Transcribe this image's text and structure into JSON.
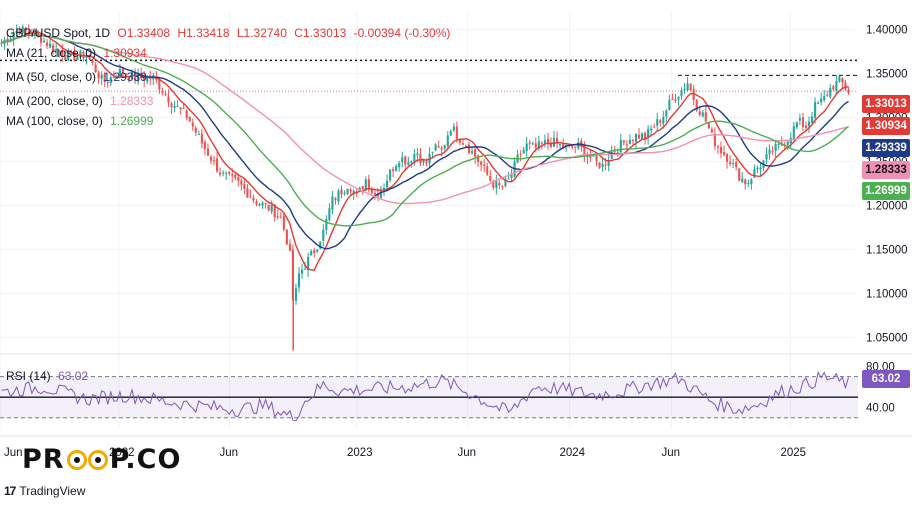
{
  "header": {
    "symbol": "GBP/USD Spot, 1D",
    "open": "O1.33408",
    "high": "H1.33418",
    "low": "L1.32740",
    "close": "C1.33013",
    "change": "-0.00394 (-0.30%)"
  },
  "indicators": [
    {
      "label": "MA (21, close, 0)",
      "value": "1.30934",
      "color": "#e53935"
    },
    {
      "label": "MA (50, close, 0)",
      "value": "1.29339",
      "color": "#1e3a8a"
    },
    {
      "label": "MA (200, close, 0)",
      "value": "1.28333",
      "color": "#f48fb1"
    },
    {
      "label": "MA (100, close, 0)",
      "value": "1.26999",
      "color": "#4caf50"
    }
  ],
  "price_labels": [
    {
      "value": "1.33013",
      "color": "#e53935"
    },
    {
      "value": "1.30934",
      "color": "#e53935"
    },
    {
      "value": "1.29339",
      "color": "#1e3a8a"
    },
    {
      "value": "1.28333",
      "color": "#f48fb1"
    },
    {
      "value": "1.26999",
      "color": "#4caf50"
    }
  ],
  "rsi": {
    "label": "RSI (14)",
    "value": "63.02",
    "color": "#7e57c2",
    "upper": 70,
    "lower": 30
  },
  "rsi_axis": [
    "80.00",
    "40.00"
  ],
  "x_axis": [
    "Jun",
    "2022",
    "Jun",
    "2023",
    "Jun",
    "2024",
    "Jun",
    "2025"
  ],
  "brand": {
    "logo_left": "PR",
    "logo_right": "P.CO",
    "platform": "TradingView",
    "platform_mark": "17"
  },
  "chart_data": {
    "type": "candlestick",
    "title": "GBP/USD Spot, 1D",
    "ylim": [
      1.03,
      1.42
    ],
    "y_ticks": [
      1.05,
      1.1,
      1.15,
      1.2,
      1.25,
      1.3,
      1.35,
      1.4
    ],
    "reference_lines": [
      1.365,
      1.348
    ],
    "x_labels": [
      "Jun",
      "2022",
      "Jun",
      "2023",
      "Jun",
      "2024",
      "Jun",
      "2025"
    ],
    "x_label_positions": [
      0.0,
      0.14,
      0.27,
      0.42,
      0.55,
      0.67,
      0.79,
      0.93
    ],
    "close_path": [
      [
        0.0,
        1.385
      ],
      [
        0.02,
        1.4
      ],
      [
        0.04,
        1.395
      ],
      [
        0.06,
        1.38
      ],
      [
        0.08,
        1.368
      ],
      [
        0.1,
        1.372
      ],
      [
        0.12,
        1.34
      ],
      [
        0.14,
        1.352
      ],
      [
        0.16,
        1.345
      ],
      [
        0.18,
        1.345
      ],
      [
        0.2,
        1.318
      ],
      [
        0.22,
        1.3
      ],
      [
        0.24,
        1.265
      ],
      [
        0.26,
        1.235
      ],
      [
        0.28,
        1.225
      ],
      [
        0.3,
        1.205
      ],
      [
        0.32,
        1.195
      ],
      [
        0.33,
        1.185
      ],
      [
        0.34,
        1.15
      ],
      [
        0.345,
        1.08
      ],
      [
        0.35,
        1.12
      ],
      [
        0.36,
        1.135
      ],
      [
        0.37,
        1.15
      ],
      [
        0.38,
        1.17
      ],
      [
        0.39,
        1.205
      ],
      [
        0.4,
        1.215
      ],
      [
        0.41,
        1.225
      ],
      [
        0.42,
        1.21
      ],
      [
        0.43,
        1.23
      ],
      [
        0.44,
        1.212
      ],
      [
        0.45,
        1.22
      ],
      [
        0.46,
        1.24
      ],
      [
        0.47,
        1.255
      ],
      [
        0.48,
        1.25
      ],
      [
        0.49,
        1.262
      ],
      [
        0.5,
        1.245
      ],
      [
        0.51,
        1.265
      ],
      [
        0.52,
        1.262
      ],
      [
        0.53,
        1.29
      ],
      [
        0.54,
        1.278
      ],
      [
        0.55,
        1.268
      ],
      [
        0.56,
        1.255
      ],
      [
        0.57,
        1.24
      ],
      [
        0.58,
        1.225
      ],
      [
        0.59,
        1.22
      ],
      [
        0.6,
        1.23
      ],
      [
        0.61,
        1.255
      ],
      [
        0.62,
        1.268
      ],
      [
        0.63,
        1.265
      ],
      [
        0.64,
        1.27
      ],
      [
        0.65,
        1.272
      ],
      [
        0.66,
        1.268
      ],
      [
        0.67,
        1.265
      ],
      [
        0.68,
        1.268
      ],
      [
        0.69,
        1.26
      ],
      [
        0.7,
        1.25
      ],
      [
        0.71,
        1.245
      ],
      [
        0.72,
        1.26
      ],
      [
        0.73,
        1.268
      ],
      [
        0.74,
        1.275
      ],
      [
        0.75,
        1.28
      ],
      [
        0.76,
        1.278
      ],
      [
        0.77,
        1.29
      ],
      [
        0.78,
        1.3
      ],
      [
        0.79,
        1.318
      ],
      [
        0.8,
        1.328
      ],
      [
        0.81,
        1.34
      ],
      [
        0.82,
        1.315
      ],
      [
        0.83,
        1.3
      ],
      [
        0.84,
        1.275
      ],
      [
        0.85,
        1.262
      ],
      [
        0.86,
        1.252
      ],
      [
        0.87,
        1.235
      ],
      [
        0.88,
        1.225
      ],
      [
        0.89,
        1.24
      ],
      [
        0.9,
        1.25
      ],
      [
        0.91,
        1.262
      ],
      [
        0.92,
        1.268
      ],
      [
        0.93,
        1.278
      ],
      [
        0.94,
        1.295
      ],
      [
        0.95,
        1.29
      ],
      [
        0.96,
        1.312
      ],
      [
        0.97,
        1.32
      ],
      [
        0.98,
        1.335
      ],
      [
        0.99,
        1.342
      ],
      [
        1.0,
        1.33
      ]
    ],
    "rsi_path": [
      [
        0.0,
        55
      ],
      [
        0.05,
        60
      ],
      [
        0.1,
        48
      ],
      [
        0.15,
        52
      ],
      [
        0.2,
        45
      ],
      [
        0.25,
        40
      ],
      [
        0.28,
        38
      ],
      [
        0.31,
        42
      ],
      [
        0.345,
        30
      ],
      [
        0.36,
        48
      ],
      [
        0.38,
        62
      ],
      [
        0.4,
        56
      ],
      [
        0.44,
        58
      ],
      [
        0.48,
        60
      ],
      [
        0.52,
        66
      ],
      [
        0.55,
        55
      ],
      [
        0.58,
        42
      ],
      [
        0.6,
        35
      ],
      [
        0.63,
        60
      ],
      [
        0.66,
        58
      ],
      [
        0.7,
        52
      ],
      [
        0.73,
        55
      ],
      [
        0.76,
        62
      ],
      [
        0.8,
        68
      ],
      [
        0.84,
        45
      ],
      [
        0.87,
        38
      ],
      [
        0.89,
        42
      ],
      [
        0.92,
        55
      ],
      [
        0.95,
        62
      ],
      [
        0.97,
        70
      ],
      [
        1.0,
        63
      ]
    ]
  }
}
